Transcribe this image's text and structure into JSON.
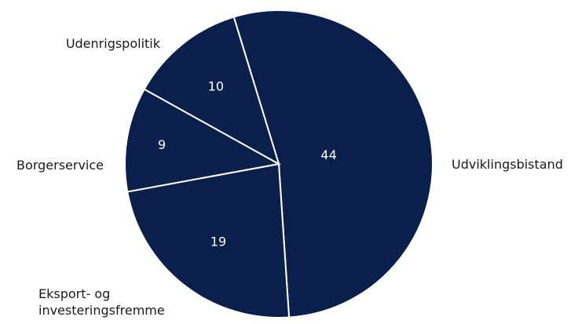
{
  "chart_data": {
    "type": "pie",
    "categories": [
      "Udviklingsbistand",
      "Eksport- og investeringsfremme",
      "Borgerservice",
      "Udenrigspolitik"
    ],
    "values": [
      44,
      19,
      9,
      10
    ],
    "value_labels": [
      "44",
      "19",
      "9",
      "10"
    ],
    "category_label_lines": [
      [
        "Udviklingsbistand"
      ],
      [
        "Eksport- og",
        "investeringsfremme"
      ],
      [
        "Borgerservice"
      ],
      [
        "Udenrigspolitik"
      ]
    ],
    "start_angle_deg": -17,
    "direction": "clockwise",
    "colors": [
      "#0b1f4d",
      "#0b1f4d",
      "#0b1f4d",
      "#0b1f4d"
    ],
    "slice_border_color": "#ffffff",
    "legend": "none",
    "labels_outside": true
  }
}
